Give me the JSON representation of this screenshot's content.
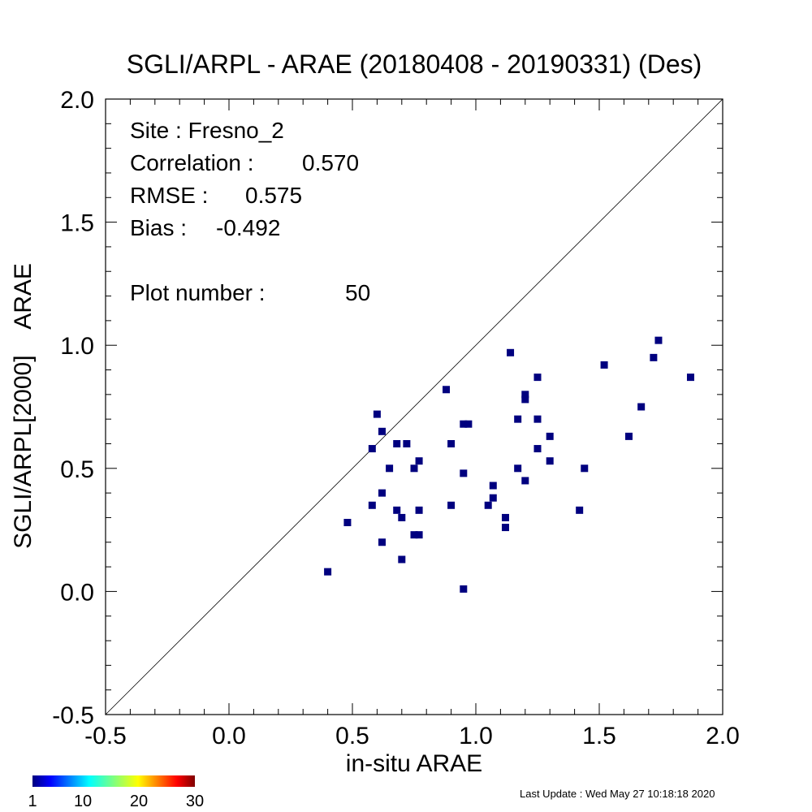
{
  "chart_data": {
    "type": "scatter",
    "title": "SGLI/ARPL - ARAE (20180408 - 20190331) (Des)",
    "xlabel": "in-situ ARAE",
    "ylabel": "SGLI/ARPL[2000]    ARAE",
    "xlim": [
      -0.5,
      2.0
    ],
    "ylim": [
      -0.5,
      2.0
    ],
    "xticks": [
      "-0.5",
      "0.0",
      "0.5",
      "1.0",
      "1.5",
      "2.0"
    ],
    "yticks": [
      "-0.5",
      "0.0",
      "0.5",
      "1.0",
      "1.5",
      "2.0"
    ],
    "one_to_one_line": true,
    "grid": false,
    "point_color": "#00007f",
    "stats": [
      {
        "label": "Site : Fresno_2",
        "value": ""
      },
      {
        "label": "Correlation :",
        "value": "0.570"
      },
      {
        "label": "RMSE :",
        "value": "0.575"
      },
      {
        "label": "Bias :",
        "value": "-0.492"
      },
      {
        "label": "Plot number :",
        "value": "50"
      }
    ],
    "points": [
      {
        "x": 0.4,
        "y": 0.08
      },
      {
        "x": 0.48,
        "y": 0.28
      },
      {
        "x": 0.58,
        "y": 0.35
      },
      {
        "x": 0.58,
        "y": 0.58
      },
      {
        "x": 0.6,
        "y": 0.72
      },
      {
        "x": 0.62,
        "y": 0.65
      },
      {
        "x": 0.62,
        "y": 0.4
      },
      {
        "x": 0.62,
        "y": 0.2
      },
      {
        "x": 0.65,
        "y": 0.5
      },
      {
        "x": 0.68,
        "y": 0.6
      },
      {
        "x": 0.68,
        "y": 0.33
      },
      {
        "x": 0.7,
        "y": 0.3
      },
      {
        "x": 0.7,
        "y": 0.13
      },
      {
        "x": 0.72,
        "y": 0.6
      },
      {
        "x": 0.75,
        "y": 0.5
      },
      {
        "x": 0.75,
        "y": 0.23
      },
      {
        "x": 0.77,
        "y": 0.23
      },
      {
        "x": 0.77,
        "y": 0.53
      },
      {
        "x": 0.77,
        "y": 0.33
      },
      {
        "x": 0.88,
        "y": 0.82
      },
      {
        "x": 0.9,
        "y": 0.6
      },
      {
        "x": 0.9,
        "y": 0.35
      },
      {
        "x": 0.95,
        "y": 0.68
      },
      {
        "x": 0.95,
        "y": 0.48
      },
      {
        "x": 0.95,
        "y": 0.01
      },
      {
        "x": 0.97,
        "y": 0.68
      },
      {
        "x": 1.05,
        "y": 0.35
      },
      {
        "x": 1.07,
        "y": 0.43
      },
      {
        "x": 1.07,
        "y": 0.38
      },
      {
        "x": 1.12,
        "y": 0.3
      },
      {
        "x": 1.12,
        "y": 0.26
      },
      {
        "x": 1.14,
        "y": 0.97
      },
      {
        "x": 1.17,
        "y": 0.7
      },
      {
        "x": 1.17,
        "y": 0.5
      },
      {
        "x": 1.2,
        "y": 0.8
      },
      {
        "x": 1.2,
        "y": 0.78
      },
      {
        "x": 1.2,
        "y": 0.45
      },
      {
        "x": 1.25,
        "y": 0.87
      },
      {
        "x": 1.25,
        "y": 0.7
      },
      {
        "x": 1.25,
        "y": 0.58
      },
      {
        "x": 1.3,
        "y": 0.63
      },
      {
        "x": 1.3,
        "y": 0.53
      },
      {
        "x": 1.42,
        "y": 0.33
      },
      {
        "x": 1.44,
        "y": 0.5
      },
      {
        "x": 1.52,
        "y": 0.92
      },
      {
        "x": 1.62,
        "y": 0.63
      },
      {
        "x": 1.67,
        "y": 0.75
      },
      {
        "x": 1.72,
        "y": 0.95
      },
      {
        "x": 1.74,
        "y": 1.02
      },
      {
        "x": 1.87,
        "y": 0.87
      }
    ],
    "colorbar": {
      "ticks": [
        "1",
        "10",
        "20",
        "30"
      ],
      "tick_values": [
        1,
        10,
        20,
        30
      ],
      "range": [
        1,
        30
      ]
    }
  },
  "footer": {
    "last_update": "Last Update : Wed May 27 10:18:18 2020"
  }
}
